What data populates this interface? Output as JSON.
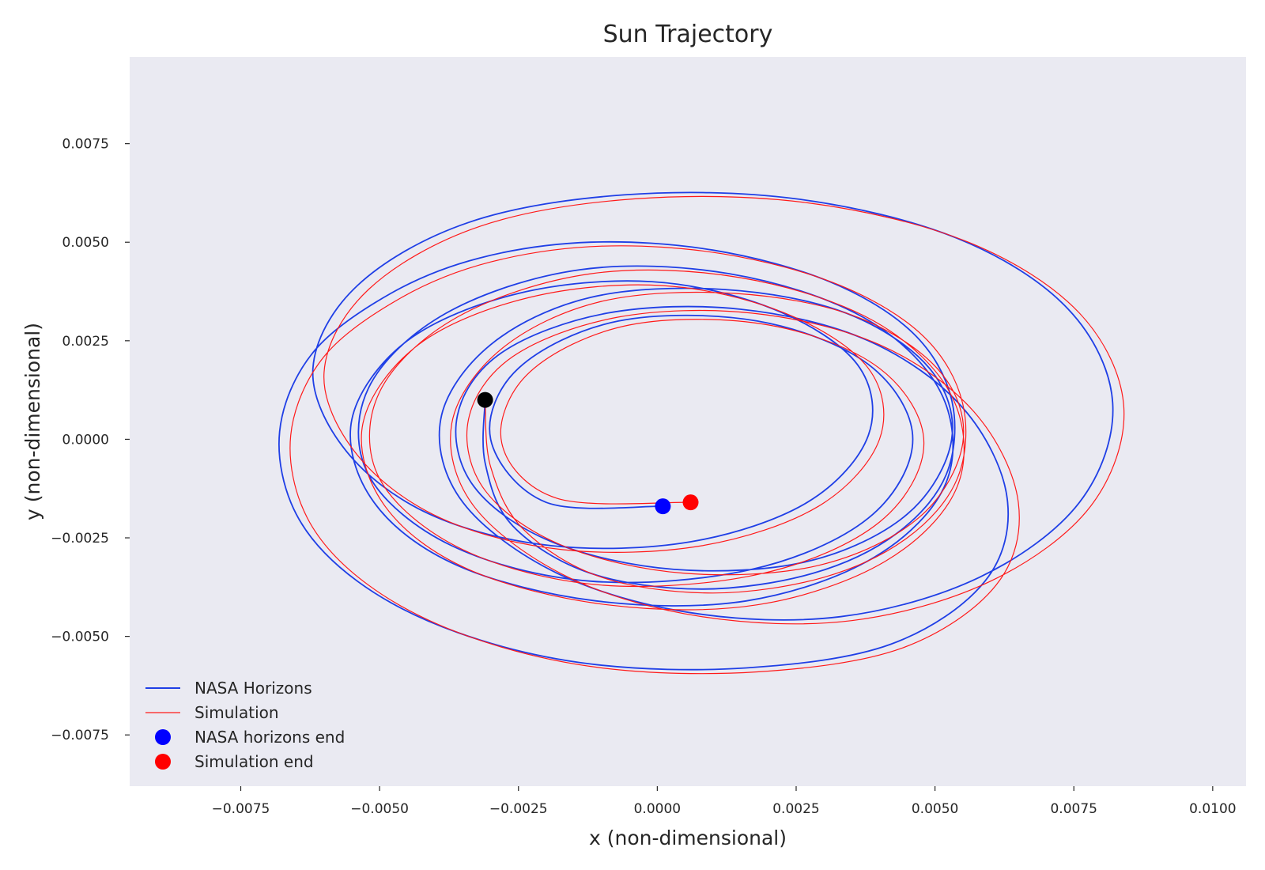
{
  "chart_data": {
    "type": "line",
    "title": "Sun Trajectory",
    "xlabel": "x (non-dimensional)",
    "ylabel": "y (non-dimensional)",
    "xlim": [
      -0.0095,
      0.0106
    ],
    "ylim": [
      -0.0088,
      0.0097
    ],
    "xticks": [
      -0.0075,
      -0.005,
      -0.0025,
      0.0,
      0.0025,
      0.005,
      0.0075,
      0.01
    ],
    "xtick_labels": [
      "−0.0075",
      "−0.0050",
      "−0.0025",
      "0.0000",
      "0.0025",
      "0.0050",
      "0.0075",
      "0.0100"
    ],
    "yticks": [
      -0.0075,
      -0.005,
      -0.0025,
      0.0,
      0.0025,
      0.005,
      0.0075
    ],
    "ytick_labels": [
      "−0.0075",
      "−0.0050",
      "−0.0025",
      "0.0000",
      "0.0025",
      "0.0050",
      "0.0075"
    ],
    "grid": false,
    "background": "#eaeaf2",
    "legend_position": "lower-left",
    "series": [
      {
        "name": "NASA Horizons",
        "kind": "line",
        "color": "#1f3fe6",
        "points": [
          [
            -0.0031,
            0.001
          ],
          [
            -0.0031,
            -0.0006
          ],
          [
            -0.0026,
            -0.0022
          ],
          [
            -0.0012,
            -0.0034
          ],
          [
            0.0008,
            -0.0038
          ],
          [
            0.0028,
            -0.0034
          ],
          [
            0.0043,
            -0.0024
          ],
          [
            0.0052,
            -0.0009
          ],
          [
            0.0053,
            0.001
          ],
          [
            0.0046,
            0.0027
          ],
          [
            0.0031,
            0.004
          ],
          [
            0.001,
            0.0048
          ],
          [
            -0.0012,
            0.005
          ],
          [
            -0.0032,
            0.0046
          ],
          [
            -0.0048,
            0.0037
          ],
          [
            -0.0062,
            0.0022
          ],
          [
            -0.0068,
            0.0002
          ],
          [
            -0.0065,
            -0.0019
          ],
          [
            -0.0054,
            -0.0036
          ],
          [
            -0.0036,
            -0.0049
          ],
          [
            -0.0012,
            -0.0057
          ],
          [
            0.0016,
            -0.0058
          ],
          [
            0.0042,
            -0.0052
          ],
          [
            0.0059,
            -0.0036
          ],
          [
            0.0063,
            -0.0015
          ],
          [
            0.0055,
            0.0008
          ],
          [
            0.0038,
            0.0025
          ],
          [
            0.0015,
            0.0033
          ],
          [
            -0.0009,
            0.0032
          ],
          [
            -0.0028,
            0.0022
          ],
          [
            -0.0036,
            0.0006
          ],
          [
            -0.0033,
            -0.0012
          ],
          [
            -0.0019,
            -0.0026
          ],
          [
            0.0003,
            -0.0033
          ],
          [
            0.0027,
            -0.0031
          ],
          [
            0.0045,
            -0.0019
          ],
          [
            0.0053,
            0.0
          ],
          [
            0.0049,
            0.0018
          ],
          [
            0.0034,
            0.0032
          ],
          [
            0.0012,
            0.0038
          ],
          [
            -0.0012,
            0.0036
          ],
          [
            -0.003,
            0.0024
          ],
          [
            -0.0039,
            0.0005
          ],
          [
            -0.0035,
            -0.0016
          ],
          [
            -0.0018,
            -0.0034
          ],
          [
            0.0006,
            -0.0044
          ],
          [
            0.0033,
            -0.0045
          ],
          [
            0.0058,
            -0.0035
          ],
          [
            0.0076,
            -0.0016
          ],
          [
            0.0082,
            0.0009
          ],
          [
            0.0074,
            0.0033
          ],
          [
            0.0054,
            0.0051
          ],
          [
            0.0025,
            0.0061
          ],
          [
            -0.0006,
            0.0062
          ],
          [
            -0.0034,
            0.0055
          ],
          [
            -0.0054,
            0.0039
          ],
          [
            -0.0062,
            0.0018
          ],
          [
            -0.0056,
            -0.0003
          ],
          [
            -0.0041,
            -0.0019
          ],
          [
            -0.0019,
            -0.0027
          ],
          [
            0.0006,
            -0.0026
          ],
          [
            0.0027,
            -0.0016
          ],
          [
            0.0038,
            0.0001
          ],
          [
            0.0036,
            0.0019
          ],
          [
            0.0021,
            0.0033
          ],
          [
            -0.0001,
            0.004
          ],
          [
            -0.0025,
            0.0037
          ],
          [
            -0.0045,
            0.0025
          ],
          [
            -0.0055,
            0.0005
          ],
          [
            -0.0051,
            -0.0016
          ],
          [
            -0.0036,
            -0.0032
          ],
          [
            -0.0011,
            -0.0041
          ],
          [
            0.0016,
            -0.0041
          ],
          [
            0.0039,
            -0.003
          ],
          [
            0.0052,
            -0.0011
          ],
          [
            0.0051,
            0.0012
          ],
          [
            0.0037,
            0.0031
          ],
          [
            0.0013,
            0.0042
          ],
          [
            -0.0014,
            0.0043
          ],
          [
            -0.0038,
            0.0032
          ],
          [
            -0.0052,
            0.0013
          ],
          [
            -0.0052,
            -0.0009
          ],
          [
            -0.0037,
            -0.0027
          ],
          [
            -0.0012,
            -0.0036
          ],
          [
            0.0017,
            -0.0033
          ],
          [
            0.0038,
            -0.002
          ],
          [
            0.0046,
            0.0
          ],
          [
            0.0038,
            0.0019
          ],
          [
            0.0018,
            0.003
          ],
          [
            -0.0007,
            0.003
          ],
          [
            -0.0025,
            0.0018
          ],
          [
            -0.003,
            0.0
          ],
          [
            -0.002,
            -0.0016
          ],
          [
            0.0001,
            -0.0017
          ]
        ]
      },
      {
        "name": "Simulation",
        "kind": "line",
        "color": "#ff1a1a",
        "points": [
          [
            -0.0031,
            0.001
          ],
          [
            -0.003,
            -0.0007
          ],
          [
            -0.0024,
            -0.0023
          ],
          [
            -0.001,
            -0.0035
          ],
          [
            0.001,
            -0.0039
          ],
          [
            0.003,
            -0.0035
          ],
          [
            0.0045,
            -0.0025
          ],
          [
            0.0054,
            -0.001
          ],
          [
            0.0055,
            0.0009
          ],
          [
            0.0048,
            0.0026
          ],
          [
            0.0033,
            0.0039
          ],
          [
            0.0012,
            0.0047
          ],
          [
            -0.001,
            0.0049
          ],
          [
            -0.003,
            0.0045
          ],
          [
            -0.0046,
            0.0036
          ],
          [
            -0.006,
            0.0021
          ],
          [
            -0.0066,
            0.0001
          ],
          [
            -0.0063,
            -0.002
          ],
          [
            -0.0052,
            -0.0037
          ],
          [
            -0.0034,
            -0.005
          ],
          [
            -0.001,
            -0.0058
          ],
          [
            0.0018,
            -0.0059
          ],
          [
            0.0044,
            -0.0053
          ],
          [
            0.0061,
            -0.0037
          ],
          [
            0.0065,
            -0.0016
          ],
          [
            0.0057,
            0.0007
          ],
          [
            0.004,
            0.0024
          ],
          [
            0.0017,
            0.0032
          ],
          [
            -0.0007,
            0.0031
          ],
          [
            -0.0026,
            0.0021
          ],
          [
            -0.0034,
            0.0005
          ],
          [
            -0.0031,
            -0.0013
          ],
          [
            -0.0017,
            -0.0027
          ],
          [
            0.0005,
            -0.0034
          ],
          [
            0.0029,
            -0.0032
          ],
          [
            0.0047,
            -0.002
          ],
          [
            0.0055,
            -0.0001
          ],
          [
            0.0051,
            0.0017
          ],
          [
            0.0036,
            0.0031
          ],
          [
            0.0014,
            0.0037
          ],
          [
            -0.001,
            0.0035
          ],
          [
            -0.0028,
            0.0023
          ],
          [
            -0.0037,
            0.0004
          ],
          [
            -0.0033,
            -0.0017
          ],
          [
            -0.0016,
            -0.0035
          ],
          [
            0.0008,
            -0.0045
          ],
          [
            0.0035,
            -0.0046
          ],
          [
            0.006,
            -0.0036
          ],
          [
            0.0078,
            -0.0017
          ],
          [
            0.0084,
            0.0008
          ],
          [
            0.0076,
            0.0032
          ],
          [
            0.0056,
            0.005
          ],
          [
            0.0027,
            0.006
          ],
          [
            -0.0004,
            0.0061
          ],
          [
            -0.0032,
            0.0054
          ],
          [
            -0.0052,
            0.0038
          ],
          [
            -0.006,
            0.0017
          ],
          [
            -0.0054,
            -0.0004
          ],
          [
            -0.0039,
            -0.002
          ],
          [
            -0.0017,
            -0.0028
          ],
          [
            0.0008,
            -0.0027
          ],
          [
            0.0029,
            -0.0017
          ],
          [
            0.004,
            0.0
          ],
          [
            0.0038,
            0.0018
          ],
          [
            0.0023,
            0.0032
          ],
          [
            0.0001,
            0.0039
          ],
          [
            -0.0023,
            0.0036
          ],
          [
            -0.0043,
            0.0024
          ],
          [
            -0.0053,
            0.0004
          ],
          [
            -0.0049,
            -0.0017
          ],
          [
            -0.0034,
            -0.0033
          ],
          [
            -0.0009,
            -0.0042
          ],
          [
            0.0018,
            -0.0042
          ],
          [
            0.0041,
            -0.0031
          ],
          [
            0.0054,
            -0.0012
          ],
          [
            0.0053,
            0.0011
          ],
          [
            0.0039,
            0.003
          ],
          [
            0.0015,
            0.0041
          ],
          [
            -0.0012,
            0.0042
          ],
          [
            -0.0036,
            0.0031
          ],
          [
            -0.005,
            0.0012
          ],
          [
            -0.005,
            -0.001
          ],
          [
            -0.0035,
            -0.0028
          ],
          [
            -0.001,
            -0.0037
          ],
          [
            0.0019,
            -0.0034
          ],
          [
            0.004,
            -0.0021
          ],
          [
            0.0048,
            -0.0001
          ],
          [
            0.004,
            0.0018
          ],
          [
            0.002,
            0.0029
          ],
          [
            -0.0005,
            0.0029
          ],
          [
            -0.0023,
            0.0017
          ],
          [
            -0.0028,
            -0.0001
          ],
          [
            -0.0018,
            -0.0015
          ],
          [
            0.0006,
            -0.0016
          ]
        ]
      },
      {
        "name": "NASA horizons end",
        "kind": "marker",
        "color": "#0000ff",
        "points": [
          [
            0.0001,
            -0.0017
          ]
        ]
      },
      {
        "name": "Simulation end",
        "kind": "marker",
        "color": "#ff0000",
        "points": [
          [
            0.0006,
            -0.0016
          ]
        ]
      },
      {
        "kind": "marker",
        "color": "#000000",
        "points": [
          [
            -0.0031,
            0.001
          ]
        ]
      }
    ]
  }
}
